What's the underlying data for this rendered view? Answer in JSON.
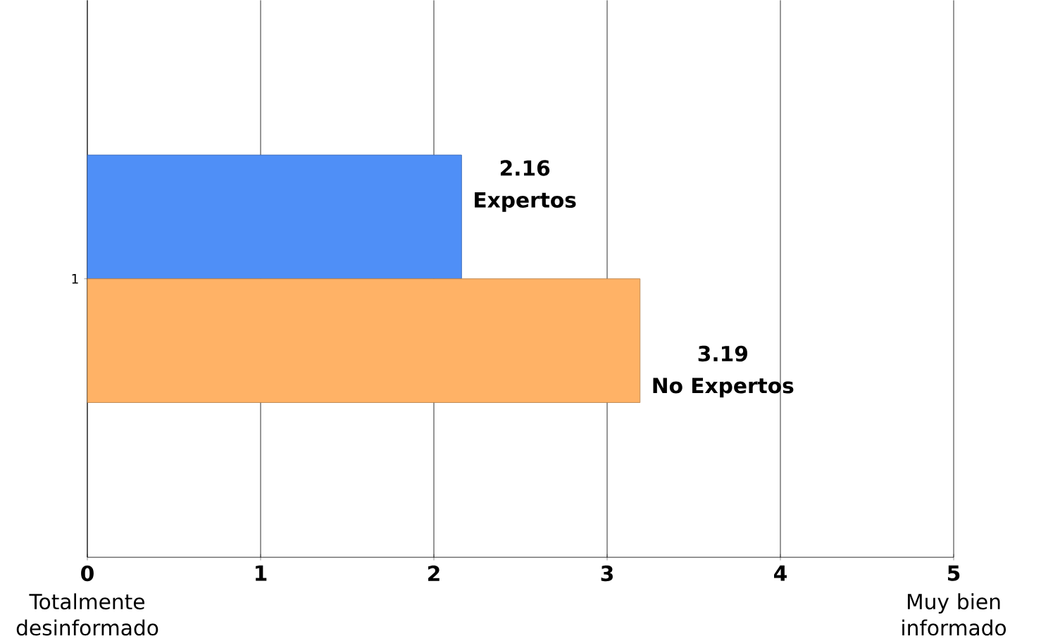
{
  "chart_data": {
    "type": "bar",
    "orientation": "horizontal",
    "categories": [
      "1"
    ],
    "series": [
      {
        "name": "Expertos",
        "color": "#4f8ff7",
        "values": [
          2.16
        ],
        "value_labels": [
          "2.16"
        ]
      },
      {
        "name": "No Expertos",
        "color": "#ffb266",
        "values": [
          3.19
        ],
        "value_labels": [
          "3.19"
        ]
      }
    ],
    "xlim": [
      0,
      5
    ],
    "xticks": [
      0,
      1,
      2,
      3,
      4,
      5
    ],
    "grid": "x",
    "annotations": [
      "Totalmente desinformado",
      "Muy bien informado"
    ]
  }
}
